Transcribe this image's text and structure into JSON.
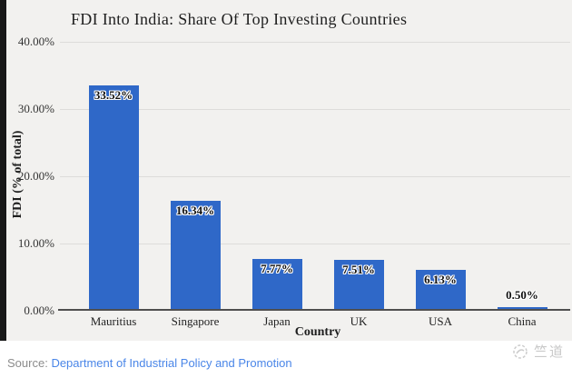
{
  "chart_data": {
    "type": "bar",
    "title": "FDI Into India: Share Of Top Investing Countries",
    "categories": [
      "Mauritius",
      "Singapore",
      "Japan",
      "UK",
      "USA",
      "China"
    ],
    "values": [
      33.52,
      16.34,
      7.77,
      7.51,
      6.13,
      0.5
    ],
    "value_labels": [
      "33.52%",
      "16.34%",
      "7.77%",
      "7.51%",
      "6.13%",
      "0.50%"
    ],
    "xlabel": "Country",
    "ylabel": "FDI (% of total)",
    "ylim": [
      0,
      40
    ],
    "yticks": [
      40,
      30,
      20,
      10,
      0
    ],
    "ytick_labels": [
      "40.00%",
      "30.00%",
      "20.00%",
      "10.00%",
      "0.00%"
    ],
    "grid": true,
    "legend": "none",
    "bar_color": "#2F68C8"
  },
  "footer": {
    "source_prefix": "Source:",
    "source_link": "Department of Industrial Policy and Promotion",
    "link_color": "#4A86E8"
  },
  "watermark": {
    "text": "竺道",
    "color": "#c9c9c9"
  }
}
